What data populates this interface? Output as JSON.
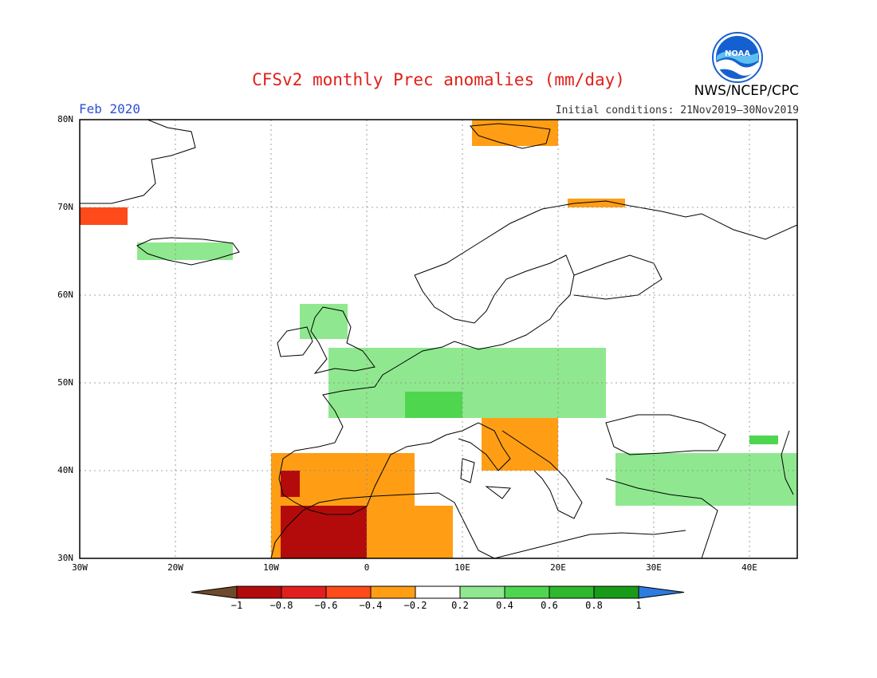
{
  "header": {
    "title": "CFSv2 monthly Prec anomalies (mm/day)",
    "month": "Feb 2020",
    "initial_conditions": "Initial conditions: 21Nov2019–30Nov2019",
    "agency": "NWS/NCEP/CPC",
    "logo_text": "NOAA",
    "logo_icon": "noaa-logo-icon"
  },
  "map": {
    "lon_range": [
      -30,
      45
    ],
    "lat_range": [
      30,
      80
    ],
    "grid": "dotted",
    "lat_ticks": [
      "30N",
      "40N",
      "50N",
      "60N",
      "70N",
      "80N"
    ],
    "lon_ticks": [
      "30W",
      "20W",
      "10W",
      "0",
      "10E",
      "20E",
      "30E",
      "40E"
    ]
  },
  "colorbar": {
    "labels": [
      "−1",
      "−0.8",
      "−0.6",
      "−0.4",
      "−0.2",
      "0.2",
      "0.4",
      "0.6",
      "0.8",
      "1"
    ],
    "colors": {
      "below_min": "#6e4a2c",
      "neg_1": "#b30b0b",
      "neg_2": "#e21f1f",
      "neg_3": "#ff4a1a",
      "neg_4": "#ff9e14",
      "neutral": "#ffffff",
      "pos_1": "#8fe88f",
      "pos_2": "#4fd64f",
      "pos_3": "#2eb82e",
      "pos_4": "#189c18",
      "above_max": "#2c7be0"
    }
  },
  "anomaly_regions": [
    {
      "name": "Iberia-Morocco dry",
      "level": -4,
      "lon": [
        -10,
        5
      ],
      "lat": [
        30,
        42
      ]
    },
    {
      "name": "Morocco core dry",
      "level": -1,
      "lon": [
        -9,
        0
      ],
      "lat": [
        30,
        36
      ]
    },
    {
      "name": "West Iberia dry",
      "level": -1,
      "lon": [
        -9,
        -7
      ],
      "lat": [
        37,
        40
      ]
    },
    {
      "name": "Algeria dry",
      "level": -4,
      "lon": [
        0,
        9
      ],
      "lat": [
        30,
        36
      ]
    },
    {
      "name": "Italy-Balkans dry",
      "level": -4,
      "lon": [
        12,
        20
      ],
      "lat": [
        40,
        46
      ]
    },
    {
      "name": "Svalbard dry",
      "level": -4,
      "lon": [
        11,
        20
      ],
      "lat": [
        77,
        80
      ]
    },
    {
      "name": "North Cape dry",
      "level": -4,
      "lon": [
        21,
        27
      ],
      "lat": [
        70,
        71
      ]
    },
    {
      "name": "Greenland dry",
      "level": -3,
      "lon": [
        -30,
        -25
      ],
      "lat": [
        68,
        70
      ]
    },
    {
      "name": "Central Europe wet",
      "level": 1,
      "lon": [
        -4,
        25
      ],
      "lat": [
        46,
        54
      ]
    },
    {
      "name": "Alps wet",
      "level": 2,
      "lon": [
        4,
        10
      ],
      "lat": [
        46,
        49
      ]
    },
    {
      "name": "Scotland wet",
      "level": 1,
      "lon": [
        -7,
        -2
      ],
      "lat": [
        55,
        59
      ]
    },
    {
      "name": "Iceland wet",
      "level": 1,
      "lon": [
        -24,
        -14
      ],
      "lat": [
        64,
        66
      ]
    },
    {
      "name": "Turkey wet",
      "level": 1,
      "lon": [
        26,
        45
      ],
      "lat": [
        36,
        42
      ]
    },
    {
      "name": "Caucasus wet",
      "level": 2,
      "lon": [
        40,
        43
      ],
      "lat": [
        43,
        44
      ]
    }
  ]
}
